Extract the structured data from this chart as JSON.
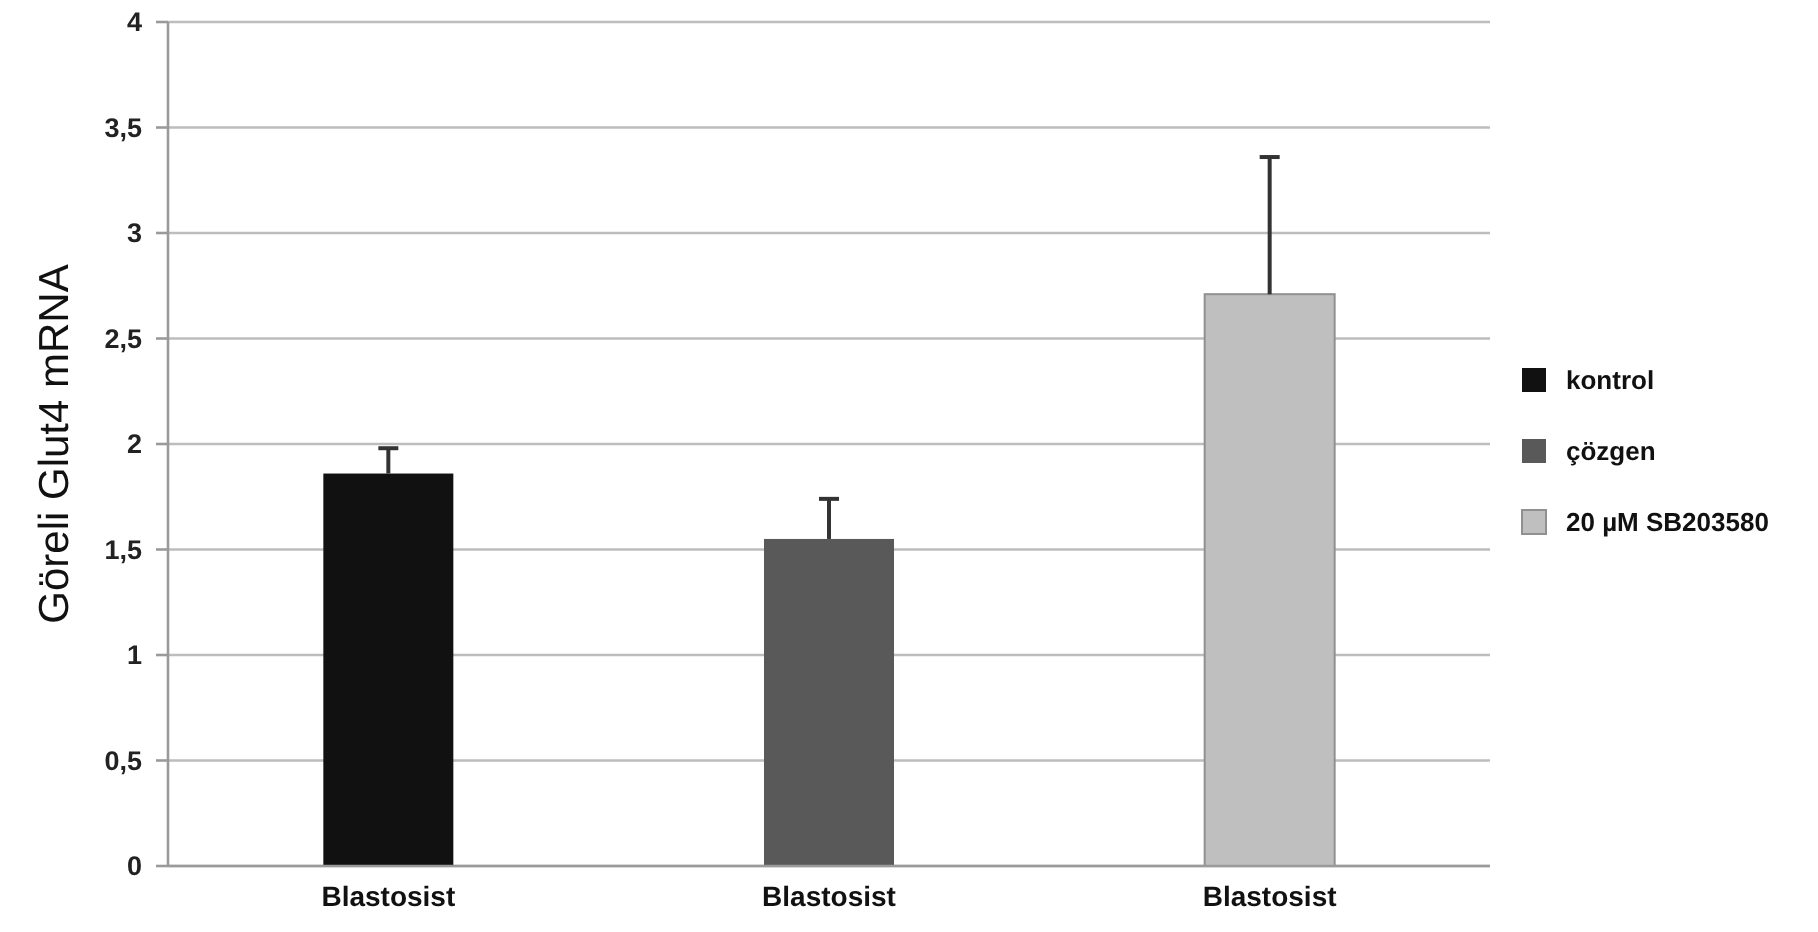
{
  "chart_data": {
    "type": "bar",
    "ylabel": "Göreli Glut4 mRNA",
    "categories": [
      "Blastosist",
      "Blastosist",
      "Blastosist"
    ],
    "series": [
      {
        "name": "kontrol",
        "color": "#111111",
        "values": [
          1.86,
          null,
          null
        ],
        "errors": [
          [
            1.86,
            1.98
          ],
          null,
          null
        ]
      },
      {
        "name": "çözgen",
        "color": "#595959",
        "values": [
          null,
          1.55,
          null
        ],
        "errors": [
          null,
          [
            1.55,
            1.74
          ],
          null
        ]
      },
      {
        "name": "20 µM SB203580",
        "color": "#bfbfbf",
        "values": [
          null,
          null,
          2.71
        ],
        "errors": [
          null,
          null,
          [
            2.71,
            3.36
          ]
        ]
      }
    ],
    "ylim": [
      0,
      4
    ],
    "yticks": [
      0,
      {
        "value": 0.5,
        "label": "0,5"
      },
      1,
      {
        "value": 1.5,
        "label": "1,5"
      },
      2,
      {
        "value": 2.5,
        "label": "2,5"
      },
      3,
      {
        "value": 3.5,
        "label": "3,5"
      },
      4
    ],
    "grid": "y",
    "legend": "right"
  }
}
